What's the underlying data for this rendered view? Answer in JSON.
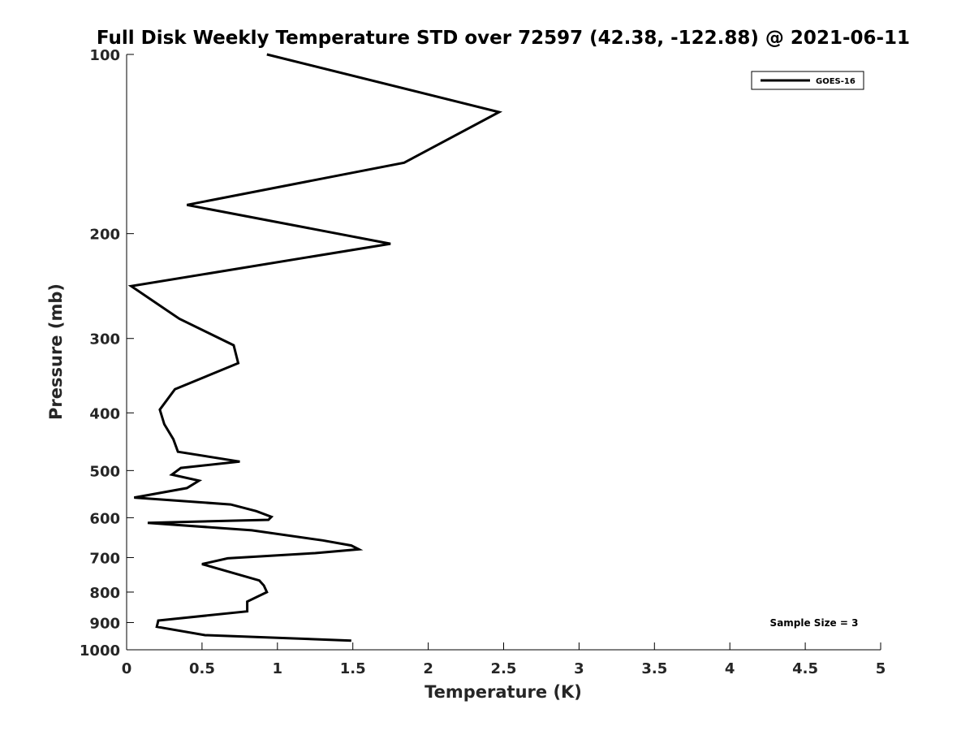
{
  "chart_data": {
    "type": "line",
    "title": "Full Disk Weekly Temperature STD over 72597 (42.38, -122.88) @ 2021-06-11",
    "xlabel": "Temperature (K)",
    "ylabel": "Pressure (mb)",
    "xlim": [
      0,
      5
    ],
    "ylim": [
      100,
      1000
    ],
    "yscale": "log",
    "yreversed": true,
    "grid": false,
    "legend_position": "top-right",
    "x_ticks": [
      0,
      0.5,
      1,
      1.5,
      2,
      2.5,
      3,
      3.5,
      4,
      4.5,
      5
    ],
    "x_tick_labels": [
      "0",
      "0.5",
      "1",
      "1.5",
      "2",
      "2.5",
      "3",
      "3.5",
      "4",
      "4.5",
      "5"
    ],
    "y_ticks": [
      100,
      200,
      300,
      400,
      500,
      600,
      700,
      800,
      900,
      1000
    ],
    "y_tick_labels": [
      "100",
      "200",
      "300",
      "400",
      "500",
      "600",
      "700",
      "800",
      "900",
      "1000"
    ],
    "series": [
      {
        "name": "GOES-16",
        "color": "#000000",
        "points": [
          [
            0.93,
            100
          ],
          [
            2.47,
            125
          ],
          [
            1.84,
            152
          ],
          [
            0.4,
            179
          ],
          [
            1.75,
            208
          ],
          [
            0.03,
            245
          ],
          [
            0.35,
            278
          ],
          [
            0.71,
            308
          ],
          [
            0.74,
            330
          ],
          [
            0.32,
            365
          ],
          [
            0.22,
            395
          ],
          [
            0.25,
            418
          ],
          [
            0.31,
            443
          ],
          [
            0.34,
            465
          ],
          [
            0.75,
            483
          ],
          [
            0.36,
            495
          ],
          [
            0.3,
            508
          ],
          [
            0.48,
            520
          ],
          [
            0.4,
            535
          ],
          [
            0.05,
            555
          ],
          [
            0.69,
            570
          ],
          [
            0.86,
            585
          ],
          [
            0.96,
            598
          ],
          [
            0.94,
            605
          ],
          [
            0.14,
            612
          ],
          [
            0.83,
            630
          ],
          [
            1.3,
            655
          ],
          [
            1.49,
            668
          ],
          [
            1.54,
            678
          ],
          [
            1.25,
            688
          ],
          [
            0.67,
            702
          ],
          [
            0.5,
            718
          ],
          [
            0.88,
            765
          ],
          [
            0.91,
            780
          ],
          [
            0.93,
            800
          ],
          [
            0.8,
            830
          ],
          [
            0.8,
            862
          ],
          [
            0.21,
            893
          ],
          [
            0.2,
            915
          ],
          [
            0.52,
            945
          ],
          [
            1.49,
            965
          ]
        ]
      }
    ],
    "annotations": [
      "Sample Size = 3"
    ]
  }
}
